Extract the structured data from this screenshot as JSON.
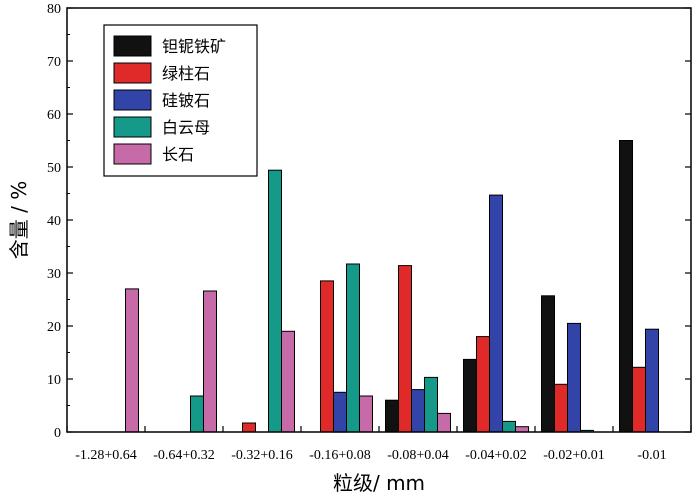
{
  "chart_data": {
    "type": "bar",
    "categories": [
      "-1.28+0.64",
      "-0.64+0.32",
      "-0.32+0.16",
      "-0.16+0.08",
      "-0.08+0.04",
      "-0.04+0.02",
      "-0.02+0.01",
      "-0.01"
    ],
    "series": [
      {
        "name": "钽铌铁矿",
        "color": "#111111",
        "values": [
          0,
          0,
          0,
          0,
          6,
          13.7,
          25.7,
          55
        ]
      },
      {
        "name": "绿柱石",
        "color": "#e02a2a",
        "values": [
          0,
          0,
          1.7,
          28.5,
          31.4,
          18,
          9,
          12.2
        ]
      },
      {
        "name": "硅铍石",
        "color": "#3344a8",
        "values": [
          0,
          0,
          0,
          7.5,
          8,
          44.7,
          20.5,
          19.4
        ]
      },
      {
        "name": "白云母",
        "color": "#159a8a",
        "values": [
          0,
          6.8,
          49.4,
          31.7,
          10.3,
          2,
          0.3,
          0
        ]
      },
      {
        "name": "长石",
        "color": "#c66ba8",
        "values": [
          27,
          26.6,
          19,
          6.8,
          3.5,
          1,
          0,
          0
        ]
      }
    ],
    "title": "",
    "xlabel": "粒级/ mm",
    "ylabel": "含量 / %",
    "ylim": [
      0,
      80
    ],
    "yticks": [
      0,
      10,
      20,
      30,
      40,
      50,
      60,
      70,
      80
    ],
    "grid": false,
    "legend_position": "top-left"
  }
}
